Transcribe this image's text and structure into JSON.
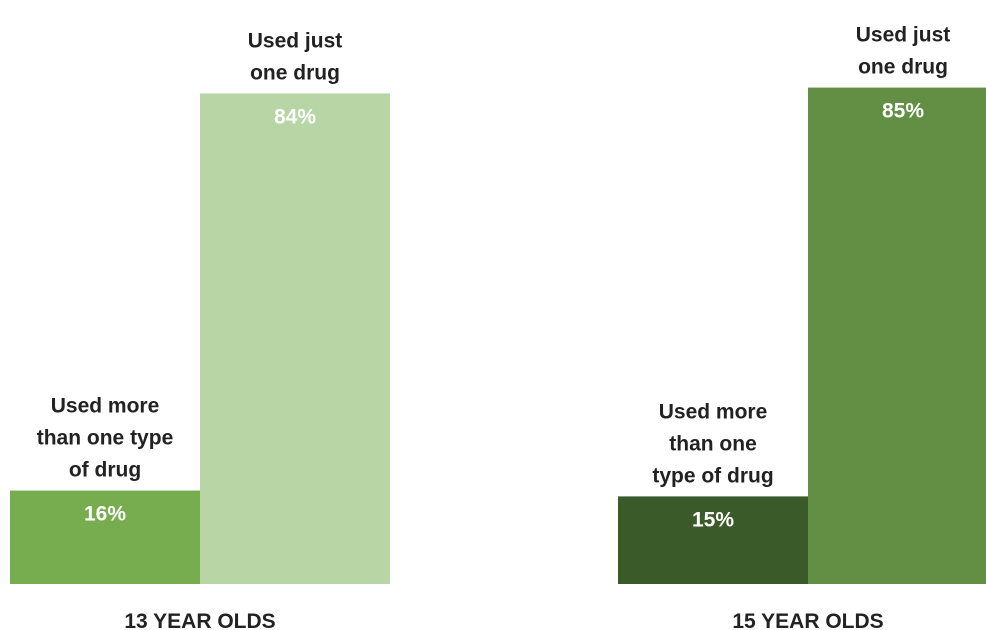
{
  "chart_data": {
    "type": "bar",
    "ylim": [
      0,
      100
    ],
    "groups": [
      {
        "category": "13 YEAR OLDS",
        "bars": [
          {
            "label": [
              "Used more",
              "than one type",
              "of drug"
            ],
            "value": 16,
            "value_text": "16%",
            "color": "#77ad4f"
          },
          {
            "label": [
              "Used just",
              "one drug"
            ],
            "value": 84,
            "value_text": "84%",
            "color": "#b7d5a5"
          }
        ]
      },
      {
        "category": "15 YEAR OLDS",
        "bars": [
          {
            "label": [
              "Used more",
              "than one",
              "type of drug"
            ],
            "value": 15,
            "value_text": "15%",
            "color": "#3b5a2a"
          },
          {
            "label": [
              "Used just",
              "one drug"
            ],
            "value": 85,
            "value_text": "85%",
            "color": "#628f43"
          }
        ]
      }
    ]
  }
}
